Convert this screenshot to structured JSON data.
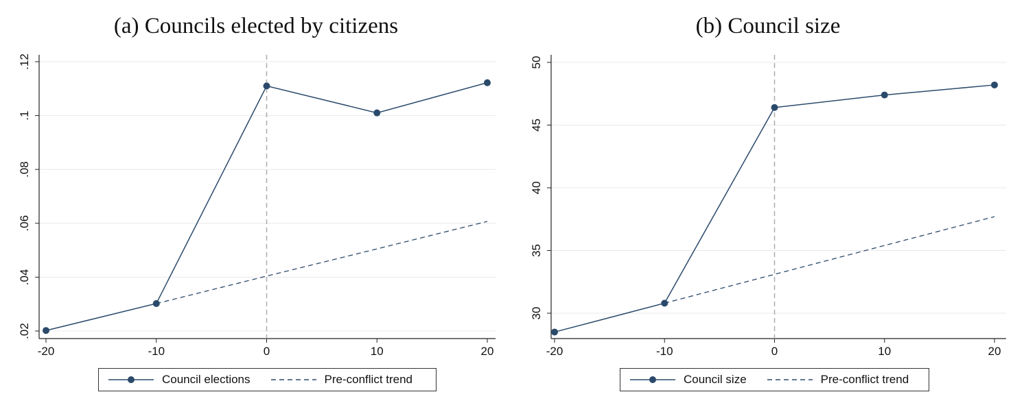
{
  "chart_data": [
    {
      "type": "line",
      "title": "(a) Councils elected by citizens",
      "xlabel": "",
      "ylabel": "",
      "x": [
        -20,
        -10,
        0,
        10,
        20
      ],
      "xticks": [
        "-20",
        "-10",
        "0",
        "10",
        "20"
      ],
      "yticks": [
        ".02",
        ".04",
        ".06",
        ".08",
        ".1",
        ".12"
      ],
      "ytick_values": [
        0.02,
        0.04,
        0.06,
        0.08,
        0.1,
        0.12
      ],
      "xlim": [
        -20,
        20
      ],
      "ylim": [
        0.02,
        0.122
      ],
      "grid": true,
      "vline": 0,
      "series": [
        {
          "name": "Council elections",
          "style": "solid-markers",
          "color": "#2b4a6b",
          "x": [
            -20,
            -10,
            0,
            10,
            20
          ],
          "values": [
            0.0202,
            0.0302,
            0.111,
            0.101,
            0.1122
          ]
        },
        {
          "name": "Pre-conflict trend",
          "style": "dashed",
          "color": "#2b4a6b",
          "x": [
            -10,
            0,
            10,
            20
          ],
          "values": [
            0.0302,
            0.0404,
            0.0505,
            0.0607
          ]
        }
      ],
      "legend_position": "bottom"
    },
    {
      "type": "line",
      "title": "(b) Council size",
      "xlabel": "",
      "ylabel": "",
      "x": [
        -20,
        -10,
        0,
        10,
        20
      ],
      "xticks": [
        "-20",
        "-10",
        "0",
        "10",
        "20"
      ],
      "yticks": [
        "30",
        "35",
        "40",
        "45",
        "50"
      ],
      "ytick_values": [
        30,
        35,
        40,
        45,
        50
      ],
      "xlim": [
        -20,
        20
      ],
      "ylim": [
        28.5,
        50
      ],
      "grid": true,
      "vline": 0,
      "series": [
        {
          "name": "Council size",
          "style": "solid-markers",
          "color": "#2b4a6b",
          "x": [
            -20,
            -10,
            0,
            10,
            20
          ],
          "values": [
            28.5,
            30.8,
            46.4,
            47.4,
            48.2
          ]
        },
        {
          "name": "Pre-conflict trend",
          "style": "dashed",
          "color": "#2b4a6b",
          "x": [
            -10,
            0,
            10,
            20
          ],
          "values": [
            30.8,
            33.1,
            35.4,
            37.7
          ]
        }
      ],
      "legend_position": "bottom"
    }
  ]
}
